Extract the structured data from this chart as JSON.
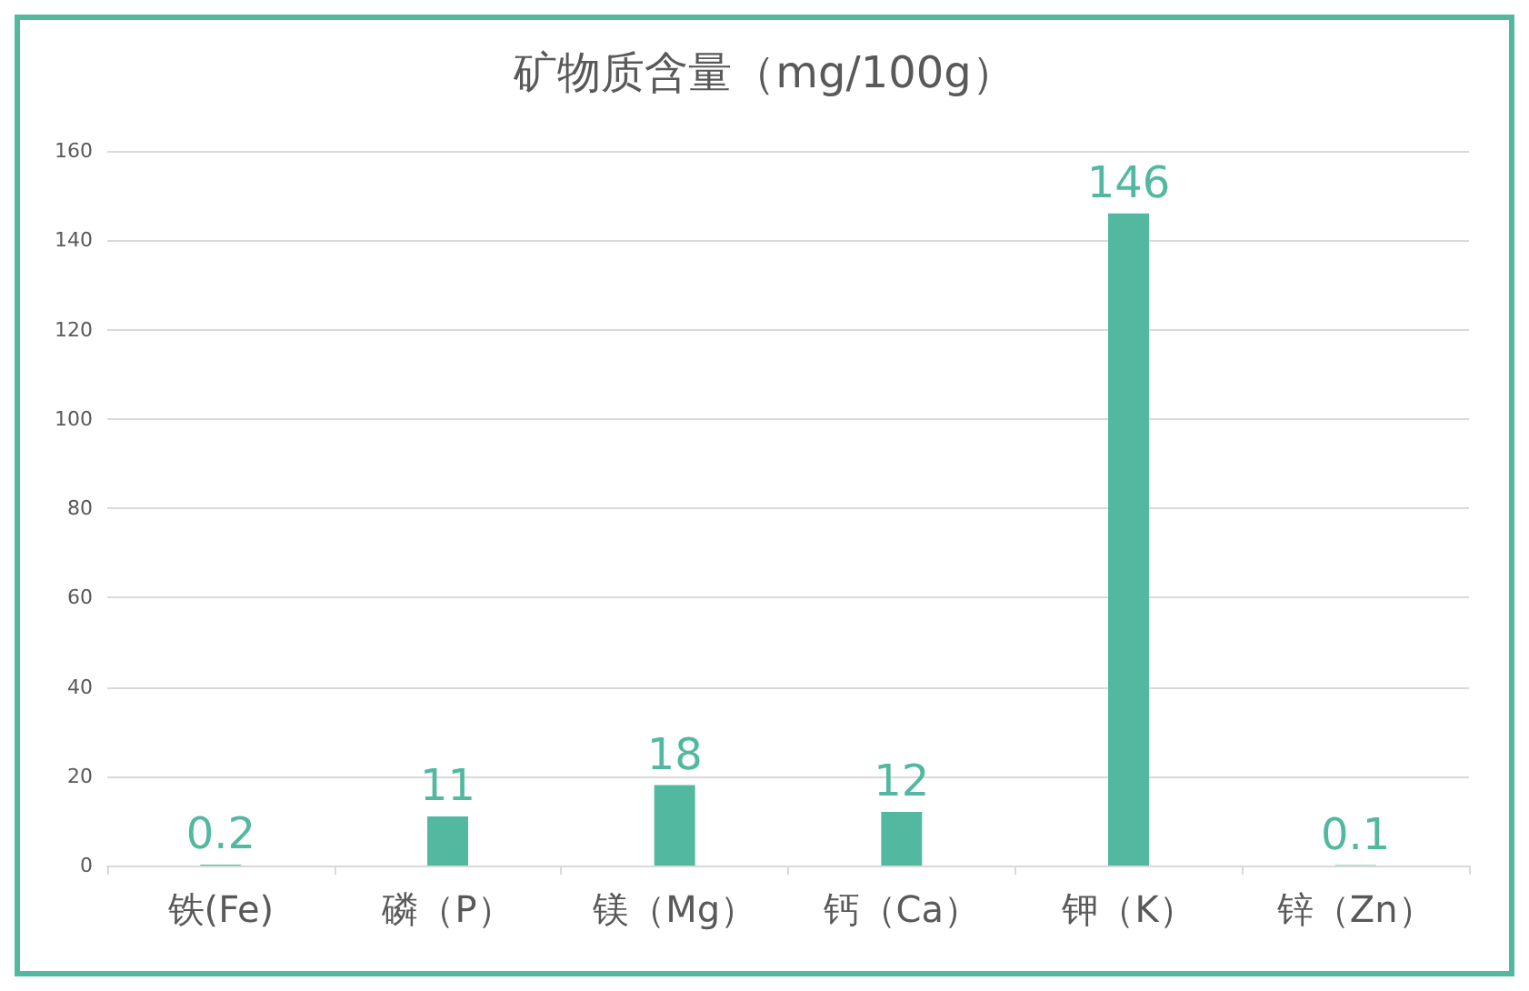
{
  "chart_data": {
    "type": "bar",
    "title": "矿物质含量（mg/100g）",
    "categories": [
      "铁(Fe)",
      "磷（P）",
      "镁（Mg）",
      "钙（Ca）",
      "钾（K）",
      "锌（Zn）"
    ],
    "values": [
      0.2,
      11,
      18,
      12,
      146,
      0.1
    ],
    "color": "#52b89f",
    "ylim": [
      0,
      160
    ],
    "yticks": [
      0,
      20,
      40,
      60,
      80,
      100,
      120,
      140,
      160
    ],
    "grid": "y",
    "data_labels": true
  }
}
